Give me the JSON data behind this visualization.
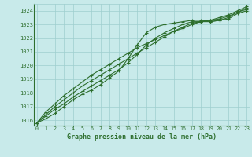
{
  "title": "Graphe pression niveau de la mer (hPa)",
  "background_color": "#c8eaea",
  "plot_bg_color": "#c8eaea",
  "grid_color": "#9ecece",
  "line_color": "#2d6e2d",
  "x_ticks": [
    0,
    1,
    2,
    3,
    4,
    5,
    6,
    7,
    8,
    9,
    10,
    11,
    12,
    13,
    14,
    15,
    16,
    17,
    18,
    19,
    20,
    21,
    22,
    23
  ],
  "y_ticks": [
    1016,
    1017,
    1018,
    1019,
    1020,
    1021,
    1022,
    1023,
    1024
  ],
  "ylim": [
    1015.6,
    1024.5
  ],
  "xlim": [
    -0.3,
    23.3
  ],
  "series": [
    [
      1015.8,
      1016.1,
      1016.5,
      1017.0,
      1017.5,
      1017.9,
      1018.2,
      1018.6,
      1019.1,
      1019.6,
      1020.5,
      1021.5,
      1022.4,
      1022.8,
      1023.0,
      1023.1,
      1023.2,
      1023.3,
      1023.3,
      1023.2,
      1023.3,
      1023.4,
      1023.8,
      1024.0
    ],
    [
      1015.8,
      1016.3,
      1016.8,
      1017.2,
      1017.7,
      1018.1,
      1018.5,
      1018.9,
      1019.3,
      1019.7,
      1020.2,
      1020.8,
      1021.5,
      1022.0,
      1022.4,
      1022.7,
      1023.0,
      1023.2,
      1023.2,
      1023.2,
      1023.3,
      1023.5,
      1023.9,
      1024.1
    ],
    [
      1015.8,
      1016.4,
      1017.0,
      1017.5,
      1018.0,
      1018.5,
      1018.9,
      1019.3,
      1019.7,
      1020.1,
      1020.5,
      1020.9,
      1021.3,
      1021.7,
      1022.1,
      1022.5,
      1022.8,
      1023.1,
      1023.2,
      1023.3,
      1023.4,
      1023.6,
      1023.9,
      1024.2
    ],
    [
      1015.8,
      1016.6,
      1017.2,
      1017.8,
      1018.3,
      1018.8,
      1019.3,
      1019.7,
      1020.1,
      1020.5,
      1020.9,
      1021.3,
      1021.6,
      1021.9,
      1022.2,
      1022.5,
      1022.7,
      1023.0,
      1023.2,
      1023.3,
      1023.5,
      1023.7,
      1024.0,
      1024.3
    ]
  ]
}
